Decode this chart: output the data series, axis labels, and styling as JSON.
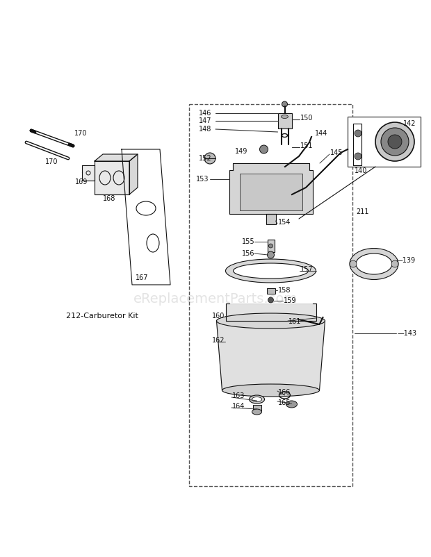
{
  "bg_color": "#ffffff",
  "watermark": "eReplacementParts.com",
  "watermark_color": "#c8c8c8",
  "watermark_fontsize": 14,
  "label_fontsize": 7.0,
  "fig_width": 6.2,
  "fig_height": 8.02,
  "dpi": 100
}
